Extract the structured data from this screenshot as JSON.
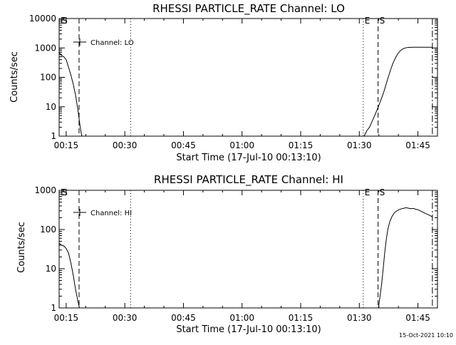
{
  "chart_data": [
    {
      "type": "line",
      "title": "RHESSI PARTICLE_RATE Channel: LO",
      "xlabel": "Start Time (17-Jul-10 00:13:10)",
      "ylabel": "Counts/sec",
      "yscale": "log",
      "ylim": [
        1,
        10000
      ],
      "xlim_minutes": [
        13.2,
        110.0
      ],
      "y_tick_labels": [
        "1",
        "10",
        "100",
        "1000",
        "10000"
      ],
      "y_tick_values": [
        1,
        10,
        100,
        1000,
        10000
      ],
      "x_tick_labels": [
        "00:15",
        "00:30",
        "00:45",
        "01:00",
        "01:15",
        "01:30",
        "01:45"
      ],
      "x_tick_values": [
        15,
        30,
        45,
        60,
        75,
        90,
        105
      ],
      "legend": "Channel: LO",
      "markers": [
        {
          "label": "E",
          "x": 13.2,
          "style": "none"
        },
        {
          "label": "S",
          "x": 13.6,
          "style": "none"
        },
        {
          "label": "",
          "x": 18.3,
          "style": "dashed"
        },
        {
          "label": "",
          "x": 31.5,
          "style": "dotted"
        },
        {
          "label": "E",
          "x": 91.0,
          "style": "dotted"
        },
        {
          "label": "S",
          "x": 94.8,
          "style": "dashed"
        },
        {
          "label": "",
          "x": 108.7,
          "style": "dashdot"
        }
      ],
      "series": [
        {
          "name": "LO",
          "x": [
            13.2,
            13.8,
            14.4,
            15.0,
            15.6,
            16.2,
            16.8,
            17.4,
            18.0,
            18.6,
            19.0
          ],
          "y": [
            700,
            550,
            500,
            400,
            220,
            120,
            60,
            25,
            8,
            2,
            1
          ]
        },
        {
          "name": "LO",
          "x": [
            91.2,
            92.0,
            92.6,
            93.2,
            93.8,
            94.4,
            95.0,
            95.6,
            96.2,
            96.8,
            97.4,
            98.0,
            98.6,
            99.2,
            99.8,
            100.4,
            101.0,
            101.6,
            102.2,
            103.0,
            104.0,
            105.0,
            106.0,
            107.0,
            108.0,
            108.7
          ],
          "y": [
            1,
            1.6,
            2,
            3,
            4.5,
            7,
            11,
            18,
            30,
            55,
            100,
            180,
            300,
            450,
            620,
            780,
            900,
            980,
            1030,
            1050,
            1060,
            1060,
            1060,
            1060,
            1060,
            1050
          ]
        }
      ]
    },
    {
      "type": "line",
      "title": "RHESSI PARTICLE_RATE Channel: HI",
      "xlabel": "Start Time (17-Jul-10 00:13:10)",
      "ylabel": "Counts/sec",
      "yscale": "log",
      "ylim": [
        1,
        1000
      ],
      "xlim_minutes": [
        13.2,
        110.0
      ],
      "y_tick_labels": [
        "1",
        "10",
        "100",
        "1000"
      ],
      "y_tick_values": [
        1,
        10,
        100,
        1000
      ],
      "x_tick_labels": [
        "00:15",
        "00:30",
        "00:45",
        "01:00",
        "01:15",
        "01:30",
        "01:45"
      ],
      "x_tick_values": [
        15,
        30,
        45,
        60,
        75,
        90,
        105
      ],
      "legend": "Channel: HI",
      "markers": [
        {
          "label": "E",
          "x": 13.2,
          "style": "none"
        },
        {
          "label": "S",
          "x": 13.6,
          "style": "none"
        },
        {
          "label": "",
          "x": 18.3,
          "style": "dashed"
        },
        {
          "label": "",
          "x": 31.5,
          "style": "dotted"
        },
        {
          "label": "E",
          "x": 91.0,
          "style": "dotted"
        },
        {
          "label": "S",
          "x": 94.8,
          "style": "dashed"
        },
        {
          "label": "",
          "x": 108.7,
          "style": "dashdot"
        }
      ],
      "series": [
        {
          "name": "HI",
          "x": [
            13.2,
            13.8,
            14.4,
            15.0,
            15.6,
            16.2,
            16.8,
            17.4,
            18.0,
            18.4
          ],
          "y": [
            45,
            40,
            38,
            33,
            25,
            14,
            7,
            3,
            1.5,
            1
          ]
        },
        {
          "name": "HI",
          "x": [
            94.9,
            95.3,
            95.7,
            96.1,
            96.5,
            96.9,
            97.3,
            97.8,
            98.4,
            99.0,
            99.6,
            100.2,
            100.8,
            101.4,
            102.0,
            102.6,
            103.2,
            103.8,
            104.4,
            105.0,
            105.6,
            106.2,
            106.8,
            107.4,
            108.0,
            108.7
          ],
          "y": [
            1,
            2,
            4,
            10,
            25,
            55,
            100,
            160,
            220,
            270,
            300,
            320,
            340,
            350,
            360,
            350,
            340,
            345,
            330,
            320,
            300,
            280,
            260,
            245,
            230,
            210
          ]
        }
      ]
    }
  ],
  "footer": {
    "timestamp": "15-Oct-2021 10:10"
  }
}
